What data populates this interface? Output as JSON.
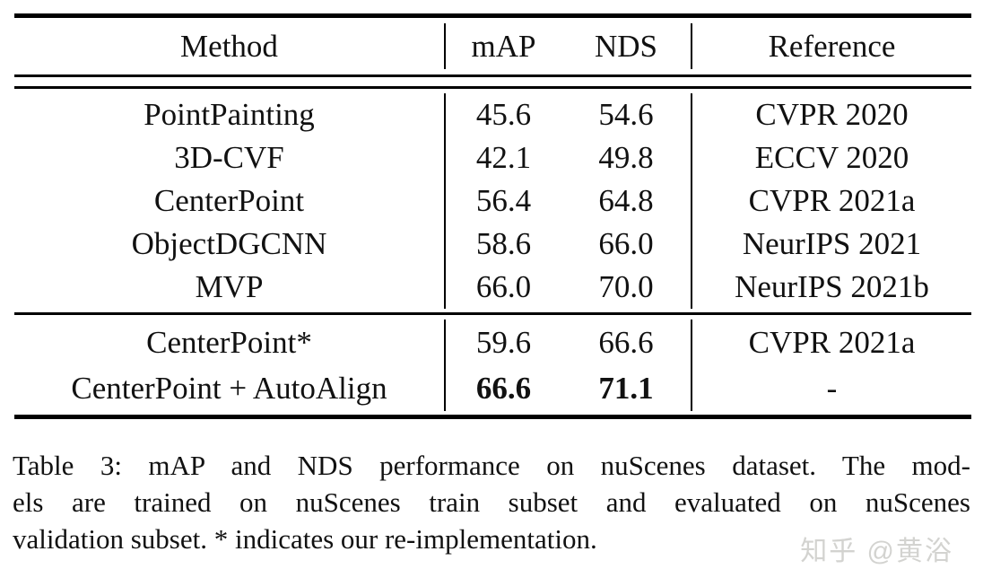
{
  "table": {
    "columns": [
      "Method",
      "mAP",
      "NDS",
      "Reference"
    ],
    "sections": [
      {
        "rows": [
          {
            "method": "PointPainting",
            "map": "45.6",
            "nds": "54.6",
            "reference": "CVPR 2020",
            "bold_metrics": false
          },
          {
            "method": "3D-CVF",
            "map": "42.1",
            "nds": "49.8",
            "reference": "ECCV 2020",
            "bold_metrics": false
          },
          {
            "method": "CenterPoint",
            "map": "56.4",
            "nds": "64.8",
            "reference": "CVPR 2021a",
            "bold_metrics": false
          },
          {
            "method": "ObjectDGCNN",
            "map": "58.6",
            "nds": "66.0",
            "reference": "NeurIPS 2021",
            "bold_metrics": false
          },
          {
            "method": "MVP",
            "map": "66.0",
            "nds": "70.0",
            "reference": "NeurIPS 2021b",
            "bold_metrics": false
          }
        ]
      },
      {
        "rows": [
          {
            "method": "CenterPoint*",
            "map": "59.6",
            "nds": "66.6",
            "reference": "CVPR 2021a",
            "bold_metrics": false
          },
          {
            "method": "CenterPoint + AutoAlign",
            "map": "66.6",
            "nds": "71.1",
            "reference": "-",
            "bold_metrics": true
          }
        ]
      }
    ]
  },
  "caption": {
    "lines": [
      "Table 3: mAP and NDS performance on nuScenes dataset. The mod-",
      "els are trained on nuScenes train subset and evaluated on nuScenes",
      "validation subset. * indicates our re-implementation."
    ],
    "full_text": "Table 3: mAP and NDS performance on nuScenes dataset. The models are trained on nuScenes train subset and evaluated on nuScenes validation subset. * indicates our re-implementation."
  },
  "watermark": {
    "text": "知乎 @黄浴"
  },
  "colors": {
    "text": "#111111",
    "rule": "#000000",
    "background": "#ffffff",
    "watermark": "#d3d3d0"
  }
}
